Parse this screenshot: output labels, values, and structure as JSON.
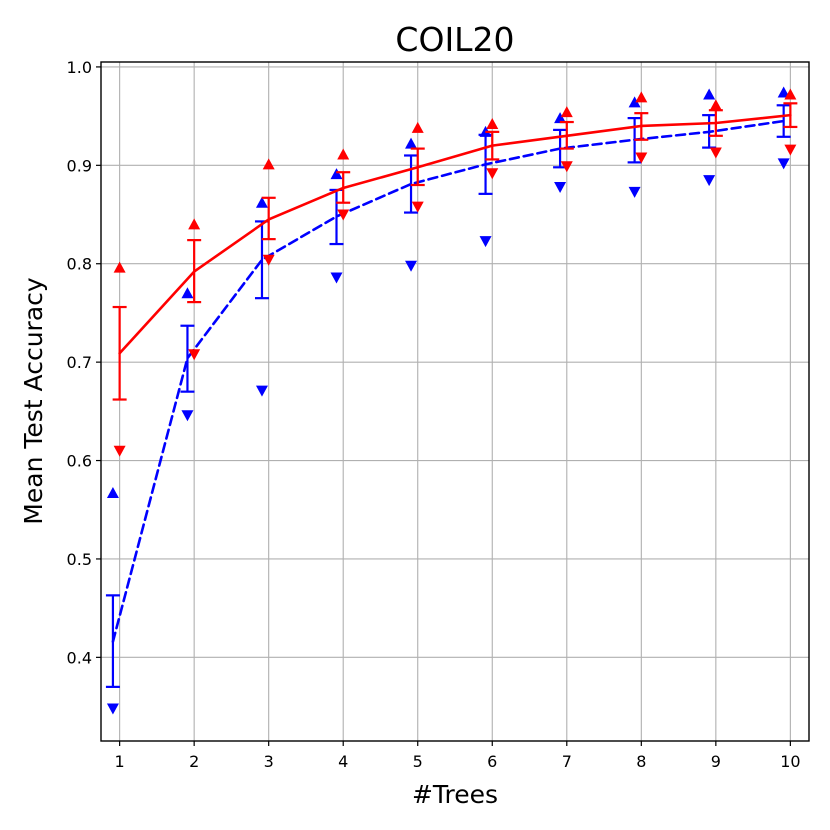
{
  "chart_data": {
    "type": "line",
    "title": "COIL20",
    "xlabel": "#Trees",
    "ylabel": "Mean Test Accuracy",
    "xlim": [
      0.75,
      10.25
    ],
    "ylim": [
      0.315,
      1.005
    ],
    "grid": true,
    "x": [
      1,
      2,
      3,
      4,
      5,
      6,
      7,
      8,
      9,
      10
    ],
    "x_ticks": [
      1,
      2,
      3,
      4,
      5,
      6,
      7,
      8,
      9,
      10
    ],
    "y_ticks": [
      0.4,
      0.5,
      0.6,
      0.7,
      0.8,
      0.9,
      1.0
    ],
    "y_tick_labels": [
      "0.4",
      "0.5",
      "0.6",
      "0.7",
      "0.8",
      "0.9",
      "1.0"
    ],
    "series": [
      {
        "name": "red-solid",
        "color": "#ff0000",
        "line_style": "solid",
        "x_offset": 0.0,
        "mean": [
          0.709,
          0.792,
          0.845,
          0.877,
          0.898,
          0.92,
          0.93,
          0.94,
          0.943,
          0.951
        ],
        "err_low": [
          0.662,
          0.761,
          0.825,
          0.862,
          0.88,
          0.906,
          0.917,
          0.926,
          0.93,
          0.939
        ],
        "err_high": [
          0.756,
          0.824,
          0.867,
          0.893,
          0.917,
          0.934,
          0.944,
          0.953,
          0.956,
          0.963
        ],
        "max": [
          0.796,
          0.84,
          0.901,
          0.911,
          0.938,
          0.942,
          0.954,
          0.969,
          0.961,
          0.972
        ],
        "min": [
          0.61,
          0.708,
          0.804,
          0.85,
          0.858,
          0.892,
          0.899,
          0.908,
          0.913,
          0.916
        ]
      },
      {
        "name": "blue-dashed",
        "color": "#0000ff",
        "line_style": "dashed",
        "x_offset": -0.09,
        "mean": [
          0.416,
          0.704,
          0.804,
          0.848,
          0.881,
          0.901,
          0.917,
          0.926,
          0.934,
          0.945
        ],
        "err_low": [
          0.37,
          0.67,
          0.765,
          0.82,
          0.852,
          0.871,
          0.898,
          0.903,
          0.918,
          0.929
        ],
        "err_high": [
          0.463,
          0.737,
          0.843,
          0.875,
          0.91,
          0.931,
          0.936,
          0.948,
          0.951,
          0.961
        ],
        "max": [
          0.567,
          0.77,
          0.862,
          0.891,
          0.922,
          0.934,
          0.948,
          0.964,
          0.972,
          0.974
        ],
        "min": [
          0.348,
          0.646,
          0.671,
          0.786,
          0.798,
          0.823,
          0.878,
          0.873,
          0.885,
          0.902
        ]
      }
    ]
  }
}
